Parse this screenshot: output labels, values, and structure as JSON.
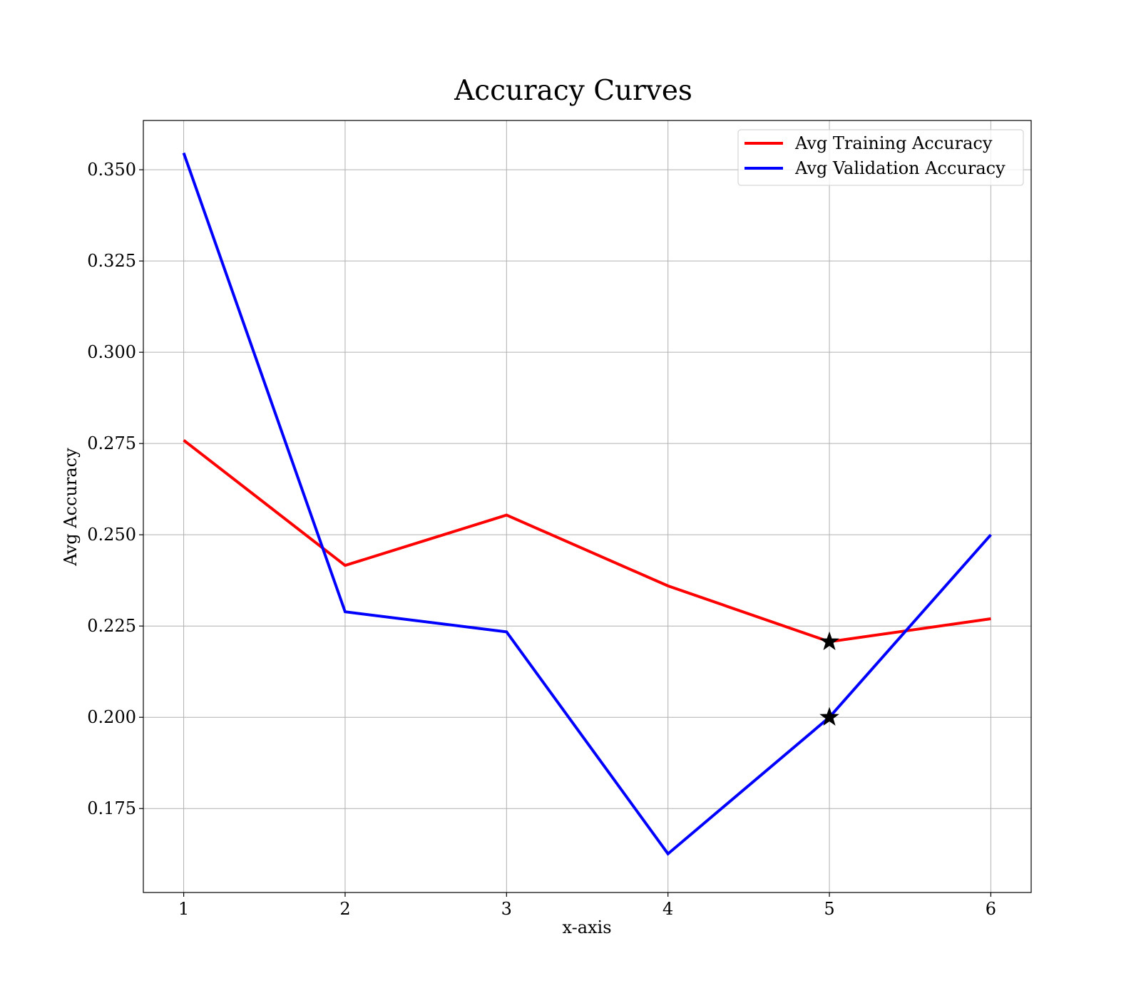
{
  "chart_data": {
    "type": "line",
    "title": "Accuracy Curves",
    "xlabel": "x-axis",
    "ylabel": "Avg Accuracy",
    "x": [
      1,
      2,
      3,
      4,
      5,
      6
    ],
    "xticks": [
      "1",
      "2",
      "3",
      "4",
      "5",
      "6"
    ],
    "yticks": [
      "0.175",
      "0.200",
      "0.225",
      "0.250",
      "0.275",
      "0.300",
      "0.325",
      "0.350"
    ],
    "xlim": [
      0.75,
      6.25
    ],
    "ylim": [
      0.152,
      0.3635
    ],
    "grid": true,
    "legend_position": "top-right",
    "series": [
      {
        "name": "Avg Training Accuracy",
        "color": "#ff0000",
        "values": [
          0.2759,
          0.2416,
          0.2554,
          0.236,
          0.2207,
          0.227
        ]
      },
      {
        "name": "Avg Validation Accuracy",
        "color": "#0000ff",
        "values": [
          0.3546,
          0.2289,
          0.2234,
          0.1626,
          0.2,
          0.25
        ]
      }
    ],
    "markers": [
      {
        "x": 5,
        "y": 0.2207,
        "shape": "star",
        "color": "#000000"
      },
      {
        "x": 5,
        "y": 0.2,
        "shape": "star",
        "color": "#000000"
      }
    ]
  }
}
